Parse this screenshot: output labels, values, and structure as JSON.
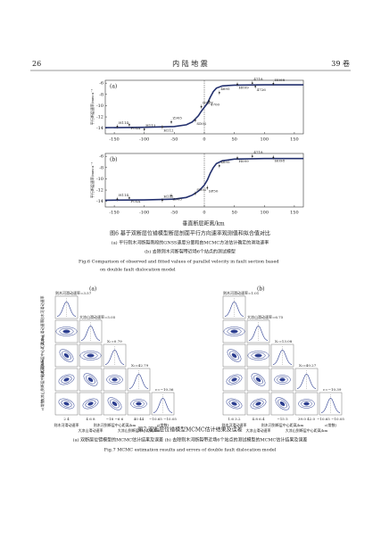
{
  "header": {
    "page": "26",
    "journal": "内 陆 地 震",
    "volume": "39 卷"
  },
  "figure6": {
    "xlabel": "垂直断层距离/km",
    "ylabel": "平行断层速率/mm·a⁻¹",
    "xlim": [
      -165,
      165
    ],
    "ylim": [
      -15,
      -5.5
    ],
    "xticks": [
      -150,
      -100,
      -50,
      0,
      50,
      100,
      150
    ],
    "yticks": [
      -6,
      -8,
      -10,
      -12,
      -14
    ],
    "panels": [
      {
        "label": "(a)",
        "model": {
          "x": [
            -165,
            -100,
            -50,
            -30,
            -20,
            -10,
            -5,
            0,
            5,
            10,
            15,
            20,
            30,
            50,
            100,
            165
          ],
          "y": [
            -13.9,
            -13.85,
            -13.7,
            -13.4,
            -12.9,
            -11.8,
            -11,
            -10.3,
            -9.6,
            -8.5,
            -7.5,
            -6.9,
            -6.5,
            -6.35,
            -6.3,
            -6.3
          ]
        },
        "stations": [
          {
            "name": "H114",
            "x": -145,
            "y": -13.7
          },
          {
            "name": "F05A",
            "x": -125,
            "y": -13.4
          },
          {
            "name": "H113",
            "x": -100,
            "y": -14.2
          },
          {
            "name": "H112",
            "x": -70,
            "y": -13.8
          },
          {
            "name": "Z905",
            "x": -55,
            "y": -12.9
          },
          {
            "name": "SD02",
            "x": -15,
            "y": -12.6
          },
          {
            "name": "DSDY",
            "x": -5,
            "y": -10.2
          },
          {
            "name": "4700",
            "x": 8,
            "y": -9.2
          },
          {
            "name": "4695",
            "x": 25,
            "y": -7.7
          },
          {
            "name": "H099",
            "x": 55,
            "y": -6.2
          },
          {
            "name": "4718",
            "x": 80,
            "y": -6.0
          },
          {
            "name": "4726",
            "x": 85,
            "y": -6.6
          },
          {
            "name": "H098",
            "x": 115,
            "y": -6.1
          }
        ]
      },
      {
        "label": "(b)",
        "model": {
          "x": [
            -165,
            -100,
            -50,
            -30,
            -20,
            -10,
            -5,
            0,
            5,
            10,
            15,
            20,
            30,
            50,
            100,
            165
          ],
          "y": [
            -13.8,
            -13.75,
            -13.6,
            -13.3,
            -12.9,
            -12.2,
            -11.7,
            -11.1,
            -10.2,
            -9,
            -8,
            -7.3,
            -6.8,
            -6.5,
            -6.4,
            -6.4
          ]
        },
        "stations": [
          {
            "name": "H114",
            "x": -145,
            "y": -13.6
          },
          {
            "name": "F05A",
            "x": -125,
            "y": -13.4
          },
          {
            "name": "H112",
            "x": -70,
            "y": -13.8
          },
          {
            "name": "Z905",
            "x": -55,
            "y": -13
          },
          {
            "name": "SD02",
            "x": -15,
            "y": -12.6
          },
          {
            "name": "SP50",
            "x": 5,
            "y": -11.6
          },
          {
            "name": "4695",
            "x": 25,
            "y": -7.7
          },
          {
            "name": "H099",
            "x": 55,
            "y": -6.3
          },
          {
            "name": "4718",
            "x": 80,
            "y": -6.0
          },
          {
            "name": "H098",
            "x": 115,
            "y": -6.2
          }
        ]
      }
    ],
    "caption": {
      "title": "图6  基于双断层位错模型断层剖面平行方向速率观测值和拟合值对比",
      "a": "(a) 平行则木河断裂南段的GNSS速度分量和由MCMC方法估计确定的滑动速率",
      "b": "(b) 去除则木河断裂带近场6个站点的测试模型",
      "en1": "Fig.6   Comparison of observed and fitted values of parallel velocity in fault section based",
      "en2": "on double fault dislocation model"
    }
  },
  "figure7": {
    "axis_labels": [
      "则木河滑动速率",
      "大凉山滑动速率",
      "则木河到断层中心距离/km",
      "大凉山到断层中心距离/km",
      "c(常数)"
    ],
    "panels": [
      {
        "label": "(a)",
        "estimates": [
          "则木河滑动速率=3.57",
          "大凉山滑动速率=5.05",
          "X₁=0.79",
          "X₂=42.79",
          "c=−10.36"
        ],
        "xtick_labels": [
          "2  4",
          "4  6  8",
          "−18 −6  6",
          "40  44",
          "−10.65 −10.05"
        ]
      },
      {
        "label": "(b)",
        "estimates": [
          "则木河滑动速率=1.01",
          "大凉山滑动速率=6.75",
          "X₁=13.08",
          "X₂=40.27",
          "c=−10.39"
        ],
        "xtick_labels": [
          "1.6 3.2",
          "4.8 6.4",
          "−15  5",
          "39.0 42.0",
          "−10.65 −10.05"
        ]
      }
    ],
    "caption": {
      "title": "图7  双断层位错模型MCMC估计结果及误差",
      "ab": "(a) 双断层位错模型的MCMC估计结果及误差   (b) 去除则木河断裂带近场6个站点的测试模型的MCMC估计结果及误差",
      "en": "Fig.7   MCMC estimation results and errors of double fault dislocation model"
    }
  }
}
